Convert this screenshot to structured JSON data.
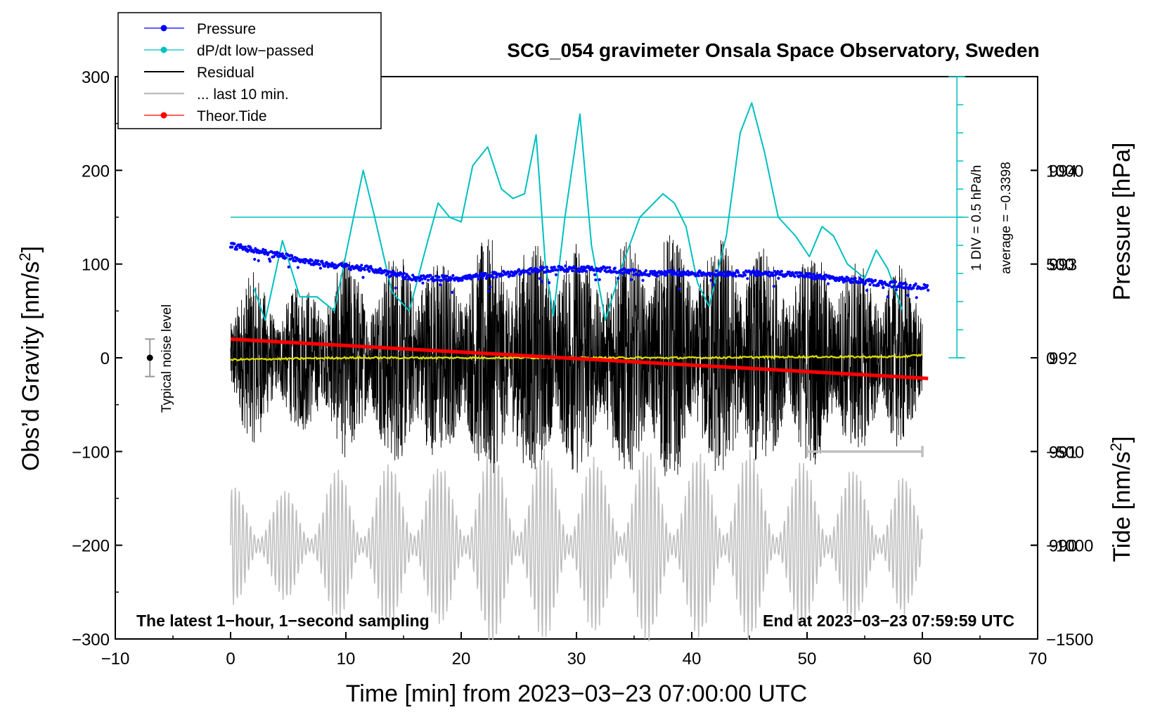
{
  "chart_data": {
    "type": "line",
    "title": "SCG_054 gravimeter Onsala Space Observatory, Sweden",
    "xlabel": "Time [min] from 2023−03−23 07:00:00 UTC",
    "ylabel_left": "Obs’d Gravity [nm/s²]",
    "ylabel_right_top": "Pressure [hPa]",
    "ylabel_right_bottom": "Tide [nm/s²]",
    "xlim": [
      -10,
      70
    ],
    "ylim_left": [
      -300,
      300
    ],
    "pressure_ylim": [
      989,
      995
    ],
    "tide_ylim": [
      -1500,
      1500
    ],
    "x_ticks": [
      "−10",
      "0",
      "10",
      "20",
      "30",
      "40",
      "50",
      "60",
      "70"
    ],
    "left_ticks": [
      "300",
      "200",
      "100",
      "0",
      "−100",
      "−200",
      "−300"
    ],
    "pressure_ticks": [
      "994",
      "993",
      "992",
      "991",
      "990"
    ],
    "tide_ticks": [
      "1000",
      "500",
      "0",
      "−500",
      "−1000",
      "−1500"
    ],
    "legend": [
      {
        "label": "Pressure",
        "color": "#0000ff"
      },
      {
        "label": "dP/dt low−passed",
        "color": "#00c0c0"
      },
      {
        "label": "Residual",
        "color": "#000000"
      },
      {
        "label": "... last 10 min.",
        "color": "#bfbfbf"
      },
      {
        "label": "Theor.Tide",
        "color": "#ff0000"
      }
    ],
    "annotations": {
      "scale_div": "1 DIV = 0.5 hPa/h",
      "average": "average = −0.3398",
      "noise": "Typical noise level",
      "footer_left": "The latest 1−hour, 1−second sampling",
      "footer_right": "End at 2023−03−23 07:59:59 UTC"
    },
    "series": [
      {
        "name": "Pressure",
        "axis": "pressure",
        "x": [
          0,
          4,
          8,
          12,
          16,
          20,
          24,
          28,
          32,
          36,
          40,
          44,
          48,
          52,
          56,
          60.5
        ],
        "values": [
          993.2,
          993.1,
          993.0,
          992.95,
          992.85,
          992.85,
          992.9,
          992.95,
          992.95,
          992.9,
          992.9,
          992.9,
          992.9,
          992.85,
          992.8,
          992.75
        ]
      },
      {
        "name": "dP/dt low-passed",
        "axis": "left",
        "x": [
          2,
          3,
          4.5,
          6,
          7.5,
          9,
          10.5,
          11.5,
          12.5,
          14,
          15.5,
          17,
          18,
          19,
          20,
          21,
          22.3,
          23.5,
          24.5,
          25.5,
          26.5,
          27.3,
          28,
          29,
          30.3,
          31.3,
          32.5,
          34,
          35.5,
          37.5,
          38.5,
          39.5,
          40.5,
          41.5,
          43,
          44.2,
          45.2,
          46.3,
          47.5,
          49,
          50.2,
          51.3,
          52.3,
          53.5,
          55,
          56,
          57,
          58.3
        ],
        "values": [
          75,
          40,
          125,
          65,
          65,
          50,
          140,
          200,
          150,
          70,
          50,
          120,
          165,
          150,
          145,
          205,
          225,
          180,
          170,
          175,
          238,
          100,
          45,
          150,
          260,
          120,
          40,
          100,
          150,
          175,
          165,
          140,
          80,
          55,
          130,
          240,
          272,
          220,
          150,
          130,
          108,
          140,
          130,
          100,
          85,
          115,
          95,
          50
        ]
      },
      {
        "name": "Residual",
        "axis": "left",
        "x": [
          0,
          2,
          4,
          6,
          8,
          10,
          12,
          14,
          16,
          18,
          20,
          22,
          24,
          26,
          28,
          30,
          32,
          34,
          36,
          38,
          40,
          42,
          44,
          46,
          48,
          50,
          52,
          54,
          56,
          58,
          60
        ],
        "values": [
          78,
          92,
          72,
          78,
          90,
          110,
          98,
          112,
          130,
          105,
          118,
          128,
          140,
          120,
          135,
          128,
          115,
          125,
          130,
          138,
          122,
          130,
          140,
          118,
          108,
          115,
          120,
          102,
          100,
          102,
          60
        ]
      },
      {
        "name": "Mean residual",
        "axis": "left",
        "x": [
          0,
          10,
          20,
          30,
          40,
          50,
          58,
          60
        ],
        "values": [
          -2,
          0,
          0,
          0,
          0,
          1,
          1,
          3
        ]
      },
      {
        "name": "Theor.Tide",
        "axis": "tide",
        "x": [
          0,
          60.5
        ],
        "values": [
          100,
          -110
        ]
      }
    ],
    "last_10_min_bar": {
      "x": [
        50,
        60
      ],
      "y": -100
    },
    "noise_bar": {
      "x": -7,
      "y": 0,
      "range": [
        -20,
        20
      ]
    }
  }
}
